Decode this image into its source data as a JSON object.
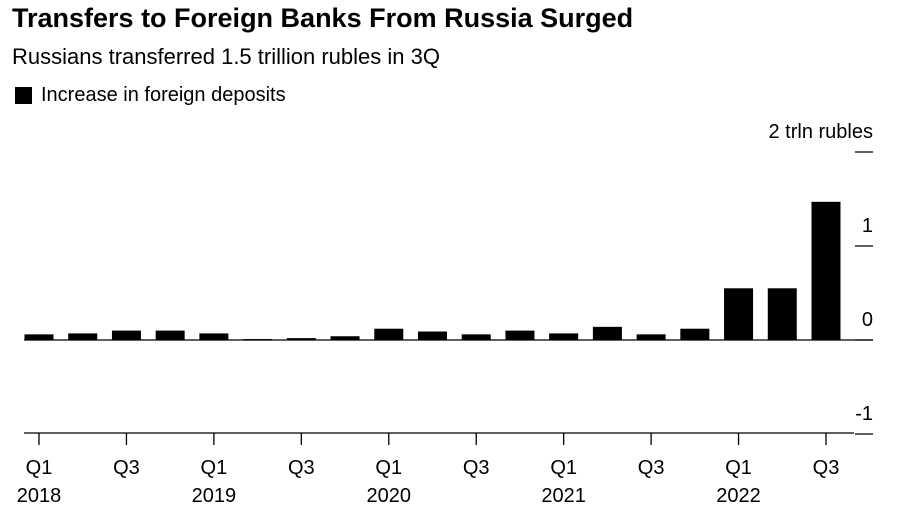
{
  "title": "Transfers to Foreign Banks From Russia Surged",
  "subtitle": "Russians transferred 1.5 trillion rubles in 3Q",
  "legend": {
    "label": "Increase in foreign deposits"
  },
  "colors": {
    "bar": "#000000",
    "axis": "#000000",
    "background": "#ffffff"
  },
  "chart_data": {
    "type": "bar",
    "title": "Transfers to Foreign Banks From Russia Surged",
    "subtitle": "Russians transferred 1.5 trillion rubles in 3Q",
    "ylabel": "",
    "y_unit_label": "2 trln rubles",
    "ylim": [
      -1,
      2
    ],
    "y_ticks": [
      -1,
      0,
      1,
      2
    ],
    "y_tick_labels": [
      "-1",
      "0",
      "1",
      "2 trln rubles"
    ],
    "x_tick_labels": [
      {
        "quarter": "Q1",
        "year": "2018",
        "index": 0
      },
      {
        "quarter": "Q3",
        "year": "",
        "index": 2
      },
      {
        "quarter": "Q1",
        "year": "2019",
        "index": 4
      },
      {
        "quarter": "Q3",
        "year": "",
        "index": 6
      },
      {
        "quarter": "Q1",
        "year": "2020",
        "index": 8
      },
      {
        "quarter": "Q3",
        "year": "",
        "index": 10
      },
      {
        "quarter": "Q1",
        "year": "2021",
        "index": 12
      },
      {
        "quarter": "Q3",
        "year": "",
        "index": 14
      },
      {
        "quarter": "Q1",
        "year": "2022",
        "index": 16
      },
      {
        "quarter": "Q3",
        "year": "",
        "index": 18
      }
    ],
    "categories": [
      "2018 Q1",
      "2018 Q2",
      "2018 Q3",
      "2018 Q4",
      "2019 Q1",
      "2019 Q2",
      "2019 Q3",
      "2019 Q4",
      "2020 Q1",
      "2020 Q2",
      "2020 Q3",
      "2020 Q4",
      "2021 Q1",
      "2021 Q2",
      "2021 Q3",
      "2021 Q4",
      "2022 Q1",
      "2022 Q2",
      "2022 Q3"
    ],
    "series": [
      {
        "name": "Increase in foreign deposits",
        "values": [
          0.06,
          0.07,
          0.1,
          0.1,
          0.07,
          0.01,
          0.02,
          0.04,
          0.12,
          0.09,
          0.06,
          0.1,
          0.07,
          0.14,
          0.06,
          0.12,
          0.55,
          0.55,
          1.47
        ]
      }
    ],
    "grid": false,
    "legend_position": "top-left"
  }
}
